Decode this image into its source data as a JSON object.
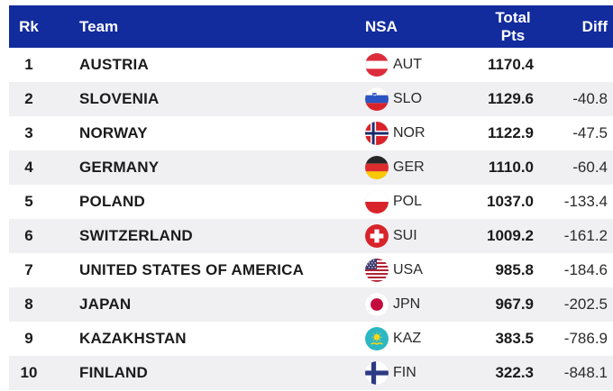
{
  "table": {
    "columns": {
      "rank": "Rk",
      "team": "Team",
      "nsa": "NSA",
      "total_pts": "Total Pts",
      "diff": "Diff"
    }
  },
  "rows": [
    {
      "rank": "1",
      "team": "AUSTRIA",
      "flag": "aut-flag-icon",
      "nsa": "AUT",
      "total_pts": "1170.4",
      "diff": ""
    },
    {
      "rank": "2",
      "team": "SLOVENIA",
      "flag": "slo-flag-icon",
      "nsa": "SLO",
      "total_pts": "1129.6",
      "diff": "-40.8"
    },
    {
      "rank": "3",
      "team": "NORWAY",
      "flag": "nor-flag-icon",
      "nsa": "NOR",
      "total_pts": "1122.9",
      "diff": "-47.5"
    },
    {
      "rank": "4",
      "team": "GERMANY",
      "flag": "ger-flag-icon",
      "nsa": "GER",
      "total_pts": "1110.0",
      "diff": "-60.4"
    },
    {
      "rank": "5",
      "team": "POLAND",
      "flag": "pol-flag-icon",
      "nsa": "POL",
      "total_pts": "1037.0",
      "diff": "-133.4"
    },
    {
      "rank": "6",
      "team": "SWITZERLAND",
      "flag": "sui-flag-icon",
      "nsa": "SUI",
      "total_pts": "1009.2",
      "diff": "-161.2"
    },
    {
      "rank": "7",
      "team": "UNITED STATES OF AMERICA",
      "flag": "usa-flag-icon",
      "nsa": "USA",
      "total_pts": "985.8",
      "diff": "-184.6"
    },
    {
      "rank": "8",
      "team": "JAPAN",
      "flag": "jpn-flag-icon",
      "nsa": "JPN",
      "total_pts": "967.9",
      "diff": "-202.5"
    },
    {
      "rank": "9",
      "team": "KAZAKHSTAN",
      "flag": "kaz-flag-icon",
      "nsa": "KAZ",
      "total_pts": "383.5",
      "diff": "-786.9"
    },
    {
      "rank": "10",
      "team": "FINLAND",
      "flag": "fin-flag-icon",
      "nsa": "FIN",
      "total_pts": "322.3",
      "diff": "-848.1"
    }
  ],
  "colors": {
    "header_bg": "#122b9d",
    "header_text": "#ffffff",
    "row_bg": "#ffffff",
    "row_alt_bg": "#f0eff2",
    "text": "#1b1b1b"
  }
}
